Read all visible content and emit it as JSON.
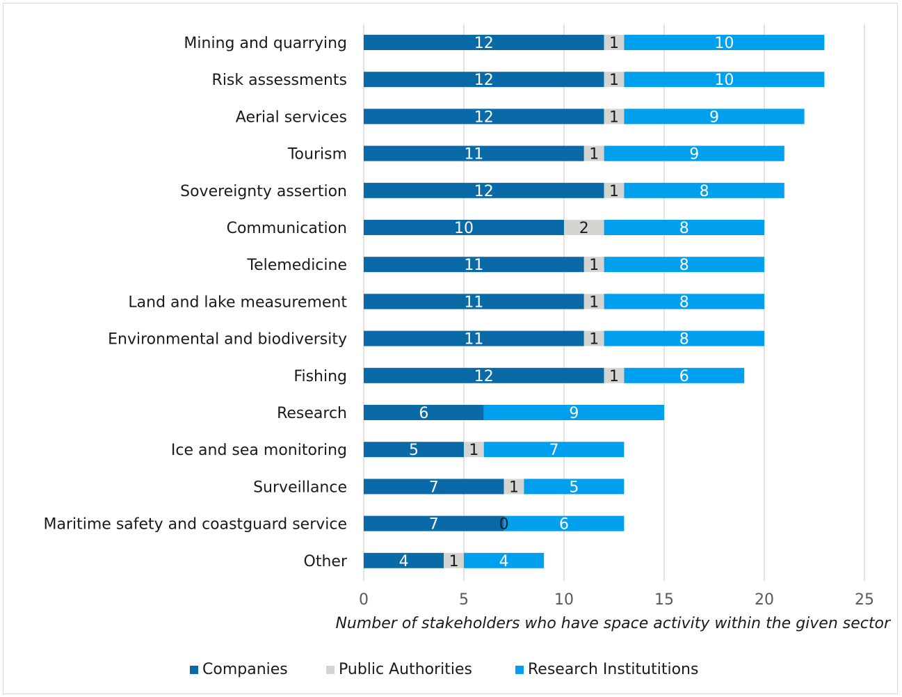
{
  "chart_data": {
    "type": "bar",
    "orientation": "horizontal",
    "stacked": true,
    "categories": [
      "Mining and quarrying",
      "Risk assessments",
      "Aerial services",
      "Tourism",
      "Sovereignty assertion",
      "Communication",
      "Telemedicine",
      "Land and lake measurement",
      "Environmental and biodiversity",
      "Fishing",
      "Research",
      "Ice and sea monitoring",
      "Surveillance",
      "Maritime safety and coastguard service",
      "Other"
    ],
    "series": [
      {
        "name": "Companies",
        "color": "#0a6aa8",
        "label_color": "#ffffff",
        "values": [
          12,
          12,
          12,
          11,
          12,
          10,
          11,
          11,
          11,
          12,
          6,
          5,
          7,
          7,
          4
        ],
        "labels": [
          "12",
          "12",
          "12",
          "11",
          "12",
          "10",
          "11",
          "11",
          "11",
          "12",
          "6",
          "5",
          "7",
          "7",
          "4"
        ]
      },
      {
        "name": "Public Authorities",
        "color": "#d4d4d0",
        "label_color": "#1a1a1a",
        "values": [
          1,
          1,
          1,
          1,
          1,
          2,
          1,
          1,
          1,
          1,
          0,
          1,
          1,
          0,
          1
        ],
        "labels": [
          "1",
          "1",
          "1",
          "1",
          "1",
          "2",
          "1",
          "1",
          "1",
          "1",
          "",
          "1",
          "1",
          "0",
          "1"
        ]
      },
      {
        "name": "Research Institutitions",
        "color": "#00a0ee",
        "label_color": "#ffffff",
        "values": [
          10,
          10,
          9,
          9,
          8,
          8,
          8,
          8,
          8,
          6,
          9,
          7,
          5,
          6,
          4
        ],
        "labels": [
          "10",
          "10",
          "9",
          "9",
          "8",
          "8",
          "8",
          "8",
          "8",
          "6",
          "9",
          "7",
          "5",
          "6",
          "4"
        ]
      }
    ],
    "xlim": [
      0,
      25
    ],
    "xticks": [
      "0",
      "5",
      "10",
      "15",
      "20",
      "25"
    ],
    "xlabel": "Number of stakeholders who have space activity within the given sector",
    "ylabel": "",
    "grid": "vertical",
    "legend": "bottom"
  }
}
